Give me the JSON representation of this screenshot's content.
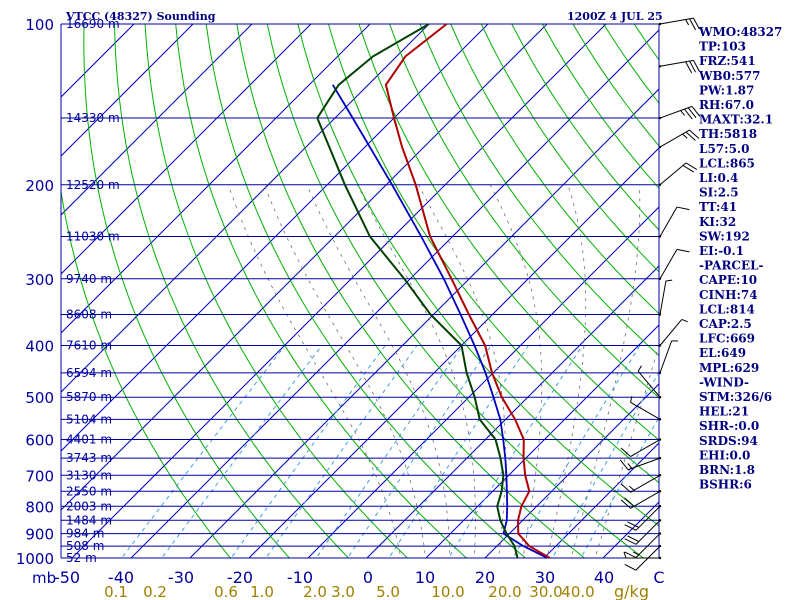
{
  "header": {
    "title": "VTCC (48327) Sounding",
    "datetime": "1200Z  4 JUL 25"
  },
  "colors": {
    "background": "#ffffff",
    "isobar": "#0000a0",
    "isotherm": "#0000c0",
    "dry_adiabat": "#00b000",
    "moist_adiabat": "#6f6f6f",
    "mixing_ratio": "#40a0e0",
    "temperature": "#b00000",
    "dewpoint": "#004000",
    "parcel": "#0000c0",
    "mixing_label": "#a08000",
    "text": "#000080"
  },
  "chart_data": {
    "type": "skew-t log-p sounding",
    "pressure_levels": [
      {
        "p": 100,
        "label": "100",
        "height": "16690 m"
      },
      {
        "p": 150,
        "label": "",
        "height": "14330 m"
      },
      {
        "p": 200,
        "label": "200",
        "height": "12520 m"
      },
      {
        "p": 250,
        "label": "",
        "height": "11030 m"
      },
      {
        "p": 300,
        "label": "300",
        "height": "9740 m"
      },
      {
        "p": 350,
        "label": "",
        "height": "8608 m"
      },
      {
        "p": 400,
        "label": "400",
        "height": "7610 m"
      },
      {
        "p": 450,
        "label": "",
        "height": "6594 m"
      },
      {
        "p": 500,
        "label": "500",
        "height": "5870 m"
      },
      {
        "p": 550,
        "label": "",
        "height": "5104 m"
      },
      {
        "p": 600,
        "label": "600",
        "height": "4401 m"
      },
      {
        "p": 650,
        "label": "",
        "height": "3743 m"
      },
      {
        "p": 700,
        "label": "700",
        "height": "3130 m"
      },
      {
        "p": 750,
        "label": "",
        "height": "2550 m"
      },
      {
        "p": 800,
        "label": "800",
        "height": "2003 m"
      },
      {
        "p": 850,
        "label": "",
        "height": "1484 m"
      },
      {
        "p": 900,
        "label": "900",
        "height": "984 m"
      },
      {
        "p": 950,
        "label": "",
        "height": "508 m"
      },
      {
        "p": 1000,
        "label": "1000",
        "height": "52 m"
      }
    ],
    "temperature_ticks": [
      "-40",
      "-30",
      "-20",
      "-10",
      "0",
      "10",
      "20",
      "30",
      "40"
    ],
    "mixing_ratio_ticks": [
      "0.1",
      "0.2",
      "0.6",
      "1.0",
      "2.0",
      "3.0",
      "5.0",
      "10.0",
      "20.0",
      "30.0",
      "40.0"
    ],
    "bottom_left_label": "mb",
    "bottom_left_temp": "-50",
    "bottom_right_temp": "C",
    "mixing_unit": "g/kg",
    "temperature_profile": [
      {
        "p": 1000,
        "t": 31.0
      },
      {
        "p": 950,
        "t": 25.5
      },
      {
        "p": 900,
        "t": 21.5
      },
      {
        "p": 850,
        "t": 19.2
      },
      {
        "p": 800,
        "t": 17.4
      },
      {
        "p": 750,
        "t": 16.2
      },
      {
        "p": 700,
        "t": 12.8
      },
      {
        "p": 650,
        "t": 9.6
      },
      {
        "p": 600,
        "t": 6.5
      },
      {
        "p": 550,
        "t": 1.6
      },
      {
        "p": 500,
        "t": -4.4
      },
      {
        "p": 450,
        "t": -10.2
      },
      {
        "p": 400,
        "t": -16.0
      },
      {
        "p": 350,
        "t": -24.0
      },
      {
        "p": 300,
        "t": -33.0
      },
      {
        "p": 250,
        "t": -43.8
      },
      {
        "p": 200,
        "t": -55.0
      },
      {
        "p": 170,
        "t": -63.7
      },
      {
        "p": 150,
        "t": -70.0
      },
      {
        "p": 130,
        "t": -77.0
      },
      {
        "p": 115,
        "t": -78.5
      },
      {
        "p": 100,
        "t": -77.0
      }
    ],
    "dewpoint_profile": [
      {
        "p": 1000,
        "td": 25.5
      },
      {
        "p": 950,
        "td": 23.0
      },
      {
        "p": 900,
        "td": 19.5
      },
      {
        "p": 850,
        "td": 16.2
      },
      {
        "p": 800,
        "td": 13.3
      },
      {
        "p": 750,
        "td": 11.5
      },
      {
        "p": 700,
        "td": 9.1
      },
      {
        "p": 650,
        "td": 5.7
      },
      {
        "p": 600,
        "td": 1.7
      },
      {
        "p": 550,
        "td": -4.4
      },
      {
        "p": 500,
        "td": -9.0
      },
      {
        "p": 450,
        "td": -14.5
      },
      {
        "p": 400,
        "td": -20.0
      },
      {
        "p": 350,
        "td": -30.5
      },
      {
        "p": 300,
        "td": -41.0
      },
      {
        "p": 250,
        "td": -54.0
      },
      {
        "p": 200,
        "td": -67.0
      },
      {
        "p": 150,
        "td": -83.0
      },
      {
        "p": 130,
        "td": -85.0
      },
      {
        "p": 115,
        "td": -84.0
      },
      {
        "p": 100,
        "td": -80.0
      }
    ],
    "parcel_profile": [
      {
        "p": 1000,
        "t": 30.6
      },
      {
        "p": 950,
        "t": 24.5
      },
      {
        "p": 900,
        "t": 19.0
      },
      {
        "p": 850,
        "t": 17.3
      },
      {
        "p": 800,
        "t": 15.0
      },
      {
        "p": 750,
        "t": 12.4
      },
      {
        "p": 700,
        "t": 9.6
      },
      {
        "p": 650,
        "t": 6.5
      },
      {
        "p": 600,
        "t": 3.0
      },
      {
        "p": 550,
        "t": -0.9
      },
      {
        "p": 500,
        "t": -5.8
      },
      {
        "p": 450,
        "t": -11.3
      },
      {
        "p": 400,
        "t": -17.8
      },
      {
        "p": 350,
        "t": -25.4
      },
      {
        "p": 300,
        "t": -34.3
      },
      {
        "p": 250,
        "t": -45.3
      },
      {
        "p": 200,
        "t": -59.0
      },
      {
        "p": 150,
        "t": -77.0
      },
      {
        "p": 130,
        "t": -86.0
      }
    ],
    "wind_barbs": [
      {
        "p": 1000,
        "dir": 270,
        "kt": 5
      },
      {
        "p": 950,
        "dir": 225,
        "kt": 10
      },
      {
        "p": 900,
        "dir": 225,
        "kt": 15
      },
      {
        "p": 850,
        "dir": 225,
        "kt": 20
      },
      {
        "p": 800,
        "dir": 225,
        "kt": 20
      },
      {
        "p": 750,
        "dir": 240,
        "kt": 20
      },
      {
        "p": 700,
        "dir": 240,
        "kt": 15
      },
      {
        "p": 650,
        "dir": 250,
        "kt": 15
      },
      {
        "p": 600,
        "dir": 240,
        "kt": 10
      },
      {
        "p": 550,
        "dir": 300,
        "kt": 5
      },
      {
        "p": 500,
        "dir": 320,
        "kt": 5
      },
      {
        "p": 450,
        "dir": 20,
        "kt": 5
      },
      {
        "p": 400,
        "dir": 40,
        "kt": 5
      },
      {
        "p": 350,
        "dir": 10,
        "kt": 5
      },
      {
        "p": 300,
        "dir": 30,
        "kt": 10
      },
      {
        "p": 250,
        "dir": 30,
        "kt": 10
      },
      {
        "p": 200,
        "dir": 50,
        "kt": 20
      },
      {
        "p": 170,
        "dir": 60,
        "kt": 25
      },
      {
        "p": 150,
        "dir": 70,
        "kt": 35
      },
      {
        "p": 120,
        "dir": 80,
        "kt": 30
      },
      {
        "p": 100,
        "dir": 80,
        "kt": 25
      }
    ]
  },
  "indices": [
    "WMO:48327",
    "TP:103",
    "FRZ:541",
    "WB0:577",
    "PW:1.87",
    "RH:67.0",
    "MAXT:32.1",
    "TH:5818",
    "L57:5.0",
    "LCL:865",
    "LI:0.4",
    "SI:2.5",
    "TT:41",
    "KI:32",
    "SW:192",
    "EI:-0.1",
    "-PARCEL-",
    "CAPE:10",
    "CINH:74",
    "LCL:814",
    "CAP:2.5",
    "LFC:669",
    "EL:649",
    "MPL:629",
    "-WIND-",
    "STM:326/6",
    "HEL:21",
    "SHR-:0.0",
    "SRDS:94",
    "EHI:0.0",
    "BRN:1.8",
    "BSHR:6"
  ]
}
